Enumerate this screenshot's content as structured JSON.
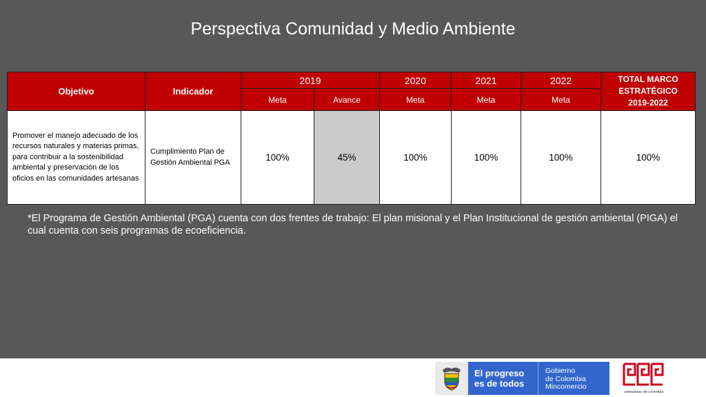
{
  "slide": {
    "title": "Perspectiva Comunidad y Medio Ambiente"
  },
  "table": {
    "headers": {
      "objetivo": "Objetivo",
      "indicador": "Indicador",
      "years": [
        "2019",
        "2020",
        "2021",
        "2022"
      ],
      "total": [
        "TOTAL MARCO",
        "ESTRATÉGICO",
        "2019-2022"
      ],
      "sub": [
        "Meta",
        "Avance",
        "Meta",
        "Meta",
        "Meta"
      ]
    },
    "row": {
      "objetivo": "Promover el manejo adecuado de los recursos naturales y materias primas, para contribuir a la sostenibilidad ambiental y preservación de los oficios en las comunidades artesanas",
      "indicador": "Cumplimiento Plan de Gestión Ambiental PGA",
      "meta_2019": "100%",
      "avance_2019": "45%",
      "meta_2020": "100%",
      "meta_2021": "100%",
      "meta_2022": "100%",
      "total": "100%"
    }
  },
  "note": "*El  Programa de Gestión Ambiental  (PGA) cuenta con dos frentes de trabajo: El plan misional y el Plan  Institucional de gestión ambiental (PIGA) el cual cuenta con seis programas de ecoeficiencia.",
  "footer": {
    "slogan": [
      "El progreso",
      "es de todos"
    ],
    "gov_name": [
      "Gobierno",
      "de Colombia",
      "Mincomercio"
    ],
    "artesanias_caption": "artesanías de colombia",
    "colors": {
      "header_red": "#c00000",
      "banner_blue": "#3366cc",
      "logo_red": "#d0021b"
    },
    "icons": [
      "colombia-coat-of-arms-icon",
      "artesanias-de-colombia-logo-icon"
    ]
  }
}
